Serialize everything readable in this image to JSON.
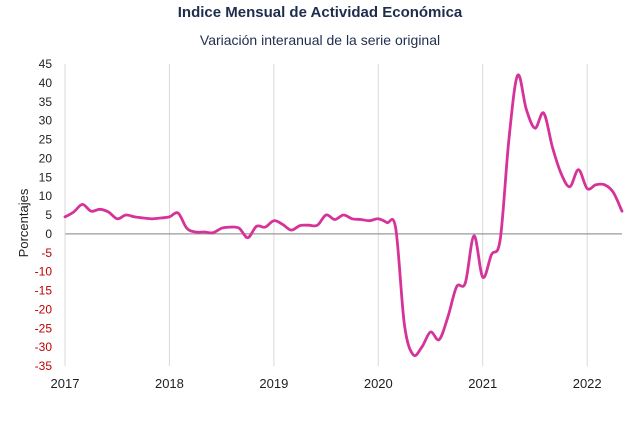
{
  "chart_data": {
    "type": "line",
    "title": "Indice Mensual de  Actividad Económica",
    "subtitle": "Variación interanual de la serie original",
    "xlabel": "",
    "ylabel": "Porcentajes",
    "ylim": [
      -35,
      45
    ],
    "yticks": [
      45,
      40,
      35,
      30,
      25,
      20,
      15,
      10,
      5,
      0,
      -5,
      -10,
      -15,
      -20,
      -25,
      -30,
      -35
    ],
    "xlim": [
      "2017-01",
      "2022-05"
    ],
    "xtick_labels": [
      "2017",
      "2018",
      "2019",
      "2020",
      "2021",
      "2022"
    ],
    "grid": "vertical lines at each year",
    "legend": "none",
    "colors": {
      "series": "#d6339a",
      "zero_line": "#9a9a9a",
      "grid": "#d9d9d9",
      "tick_positive": "#1f1f1f",
      "tick_negative": "#c00000",
      "title": "#1f2d4d"
    },
    "series": [
      {
        "x": [
          "2017-01",
          "2017-02",
          "2017-03",
          "2017-04",
          "2017-05",
          "2017-06",
          "2017-07",
          "2017-08",
          "2017-09",
          "2017-10",
          "2017-11",
          "2017-12",
          "2018-01",
          "2018-02",
          "2018-03",
          "2018-04",
          "2018-05",
          "2018-06",
          "2018-07",
          "2018-08",
          "2018-09",
          "2018-10",
          "2018-11",
          "2018-12",
          "2019-01",
          "2019-02",
          "2019-03",
          "2019-04",
          "2019-05",
          "2019-06",
          "2019-07",
          "2019-08",
          "2019-09",
          "2019-10",
          "2019-11",
          "2019-12",
          "2020-01",
          "2020-02",
          "2020-03",
          "2020-04",
          "2020-05",
          "2020-06",
          "2020-07",
          "2020-08",
          "2020-09",
          "2020-10",
          "2020-11",
          "2020-12",
          "2021-01",
          "2021-02",
          "2021-03",
          "2021-04",
          "2021-05",
          "2021-06",
          "2021-07",
          "2021-08",
          "2021-09",
          "2021-10",
          "2021-11",
          "2021-12",
          "2022-01",
          "2022-02",
          "2022-03",
          "2022-04",
          "2022-05"
        ],
        "values": [
          4.5,
          5.8,
          7.8,
          6.0,
          6.5,
          5.8,
          4.0,
          5.0,
          4.5,
          4.2,
          4.0,
          4.2,
          4.5,
          5.5,
          1.5,
          0.5,
          0.5,
          0.3,
          1.5,
          1.8,
          1.5,
          -1.0,
          2.0,
          1.8,
          3.5,
          2.5,
          1.0,
          2.2,
          2.3,
          2.3,
          5.0,
          3.8,
          5.0,
          4.0,
          3.8,
          3.5,
          4.0,
          3.0,
          1.5,
          -24.0,
          -32.0,
          -30.0,
          -26.0,
          -28.0,
          -22.0,
          -14.0,
          -13.0,
          -0.5,
          -11.5,
          -5.5,
          -1.5,
          25.0,
          42.0,
          33.0,
          28.0,
          32.0,
          23.0,
          16.0,
          12.5,
          17.0,
          12.0,
          13.0,
          13.0,
          11.0,
          6.0
        ]
      }
    ]
  }
}
